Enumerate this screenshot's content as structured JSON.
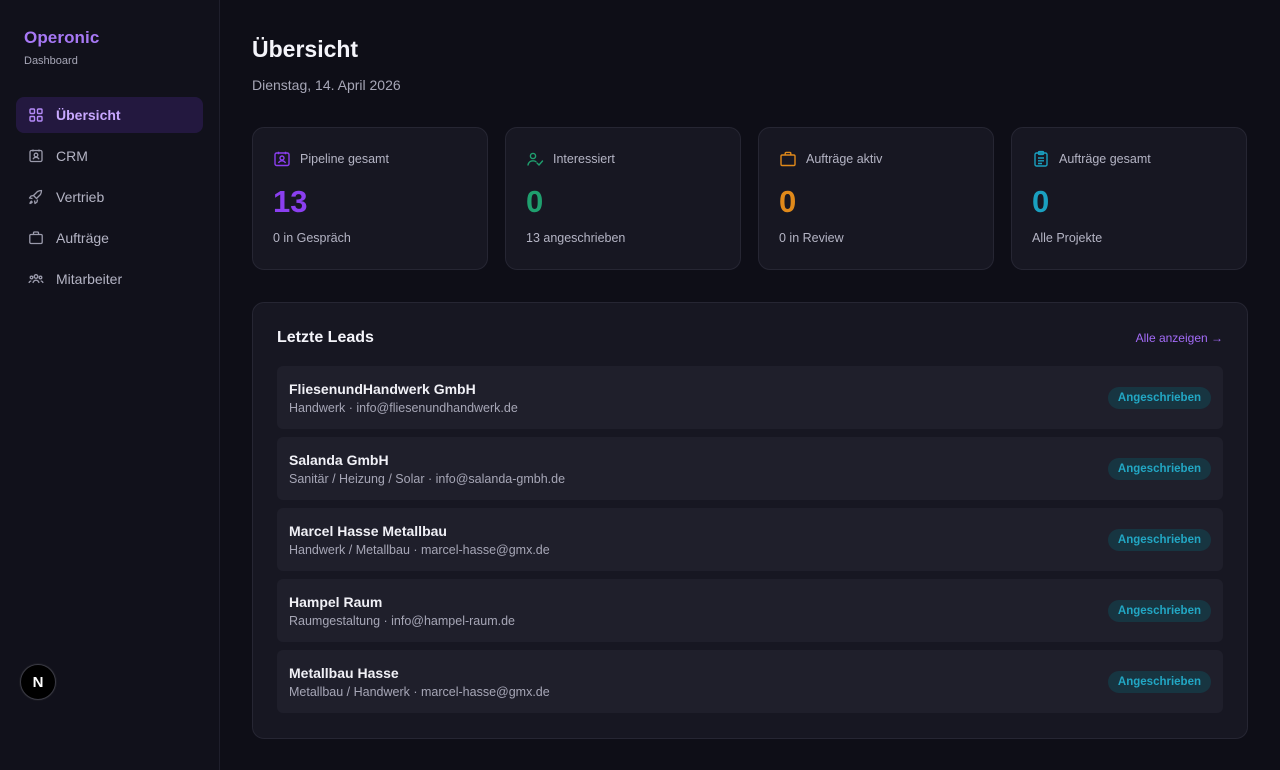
{
  "brand": {
    "name": "Operonic",
    "subtitle": "Dashboard"
  },
  "sidebar": {
    "items": [
      {
        "label": "Übersicht",
        "icon": "grid-icon",
        "active": true
      },
      {
        "label": "CRM",
        "icon": "contact-card-icon",
        "active": false
      },
      {
        "label": "Vertrieb",
        "icon": "rocket-icon",
        "active": false
      },
      {
        "label": "Aufträge",
        "icon": "briefcase-icon",
        "active": false
      },
      {
        "label": "Mitarbeiter",
        "icon": "users-icon",
        "active": false
      }
    ],
    "footer_badge": "N"
  },
  "header": {
    "title": "Übersicht",
    "date": "Dienstag, 14. April 2026"
  },
  "stats": [
    {
      "label": "Pipeline gesamt",
      "value": "13",
      "sub": "0 in Gespräch",
      "icon": "contact-card-icon",
      "color": "#8b3ff0"
    },
    {
      "label": "Interessiert",
      "value": "0",
      "sub": "13 angeschrieben",
      "icon": "user-check-icon",
      "color": "#1f9f6e"
    },
    {
      "label": "Aufträge aktiv",
      "value": "0",
      "sub": "0 in Review",
      "icon": "briefcase-icon",
      "color": "#e0891a"
    },
    {
      "label": "Aufträge gesamt",
      "value": "0",
      "sub": "Alle Projekte",
      "icon": "clipboard-icon",
      "color": "#1aa0c0"
    }
  ],
  "leads": {
    "title": "Letzte Leads",
    "link_label": "Alle anzeigen →",
    "rows": [
      {
        "name": "FliesenundHandwerk GmbH",
        "meta": "Handwerk · info@fliesenundhandwerk.de",
        "status": "Angeschrieben"
      },
      {
        "name": "Salanda GmbH",
        "meta": "Sanitär / Heizung / Solar · info@salanda-gmbh.de",
        "status": "Angeschrieben"
      },
      {
        "name": "Marcel Hasse Metallbau",
        "meta": "Handwerk / Metallbau · marcel-hasse@gmx.de",
        "status": "Angeschrieben"
      },
      {
        "name": "Hampel Raum",
        "meta": "Raumgestaltung · info@hampel-raum.de",
        "status": "Angeschrieben"
      },
      {
        "name": "Metallbau Hasse",
        "meta": "Metallbau / Handwerk · marcel-hasse@gmx.de",
        "status": "Angeschrieben"
      }
    ]
  }
}
